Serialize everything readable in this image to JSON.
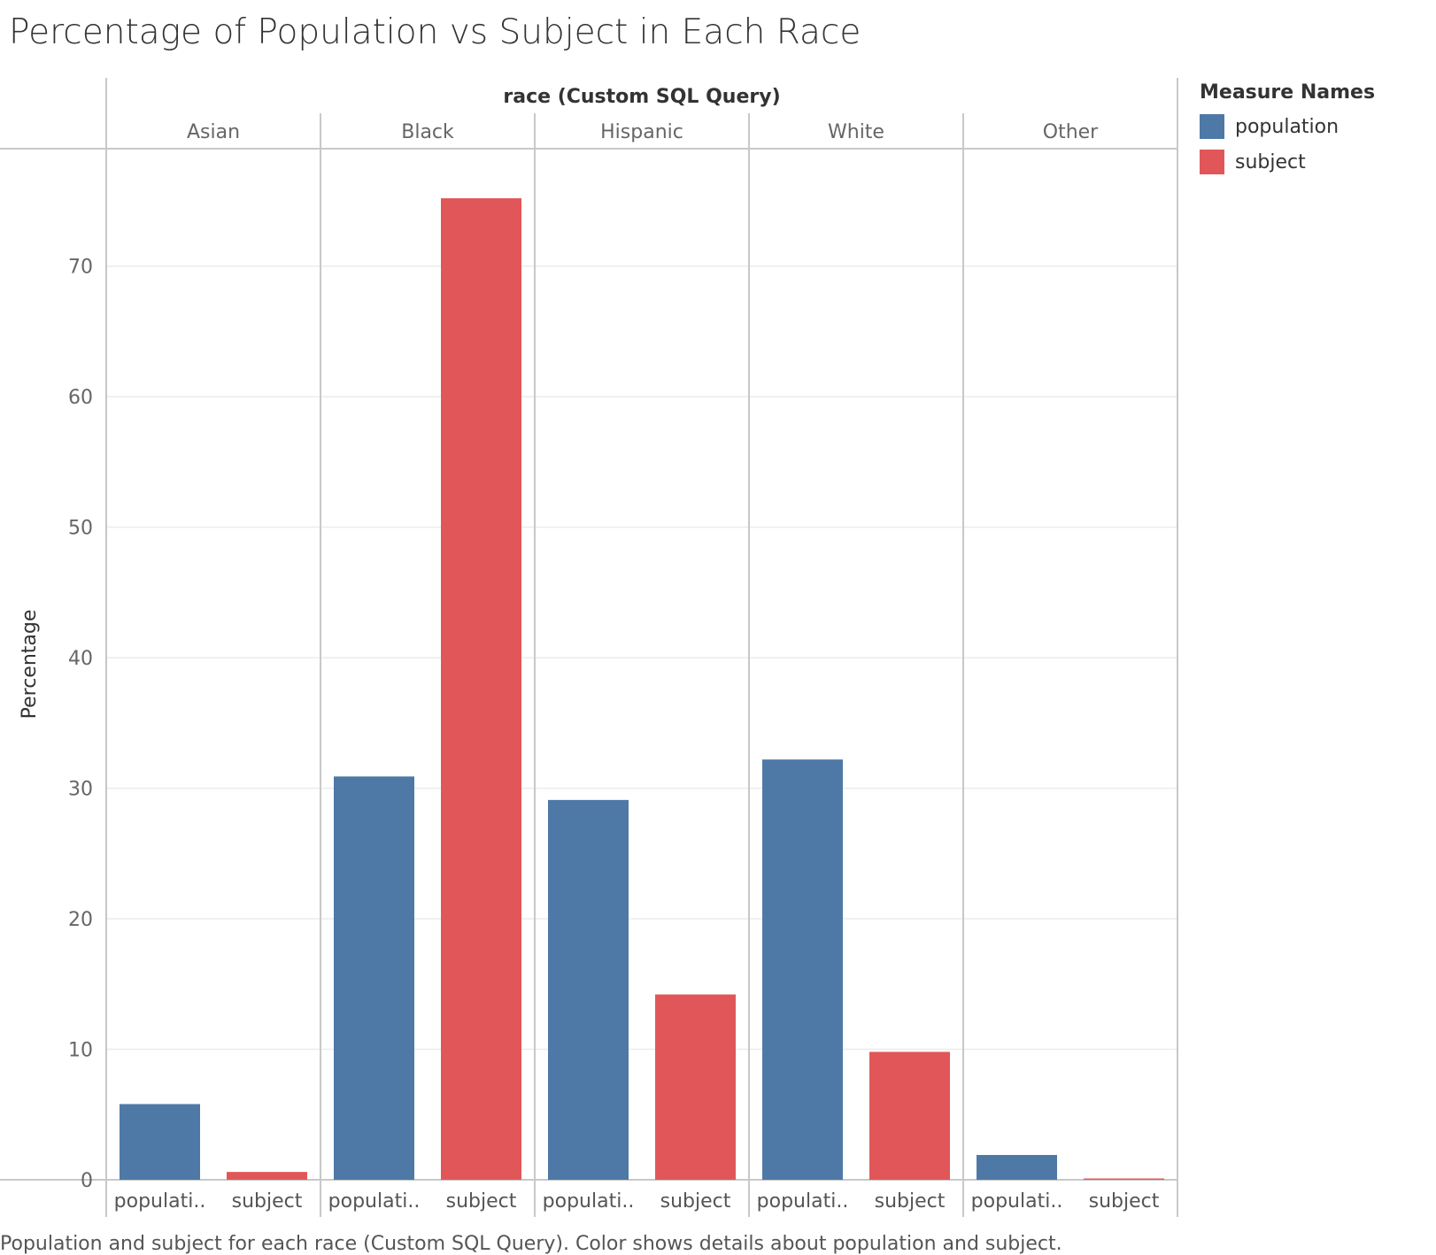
{
  "chart_data": {
    "type": "bar",
    "title": "Percentage of Population vs Subject in Each Race",
    "column_header_title": "race (Custom SQL Query)",
    "ylabel": "Percentage",
    "ylim": [
      0,
      79
    ],
    "yticks": [
      0,
      10,
      20,
      30,
      40,
      50,
      60,
      70
    ],
    "grid": true,
    "categories": [
      "Asian",
      "Black",
      "Hispanic",
      "White",
      "Other"
    ],
    "bar_labels": [
      "populati..",
      "subject"
    ],
    "series": [
      {
        "name": "population",
        "color": "#4e79a7",
        "values": [
          5.8,
          30.9,
          29.1,
          32.2,
          1.9
        ]
      },
      {
        "name": "subject",
        "color": "#e15759",
        "values": [
          0.6,
          75.2,
          14.2,
          9.8,
          0.1
        ]
      }
    ],
    "legend": {
      "title": "Measure Names",
      "placement": "right"
    },
    "caption": "Population and subject for each race (Custom SQL Query).  Color shows details about population and subject."
  }
}
